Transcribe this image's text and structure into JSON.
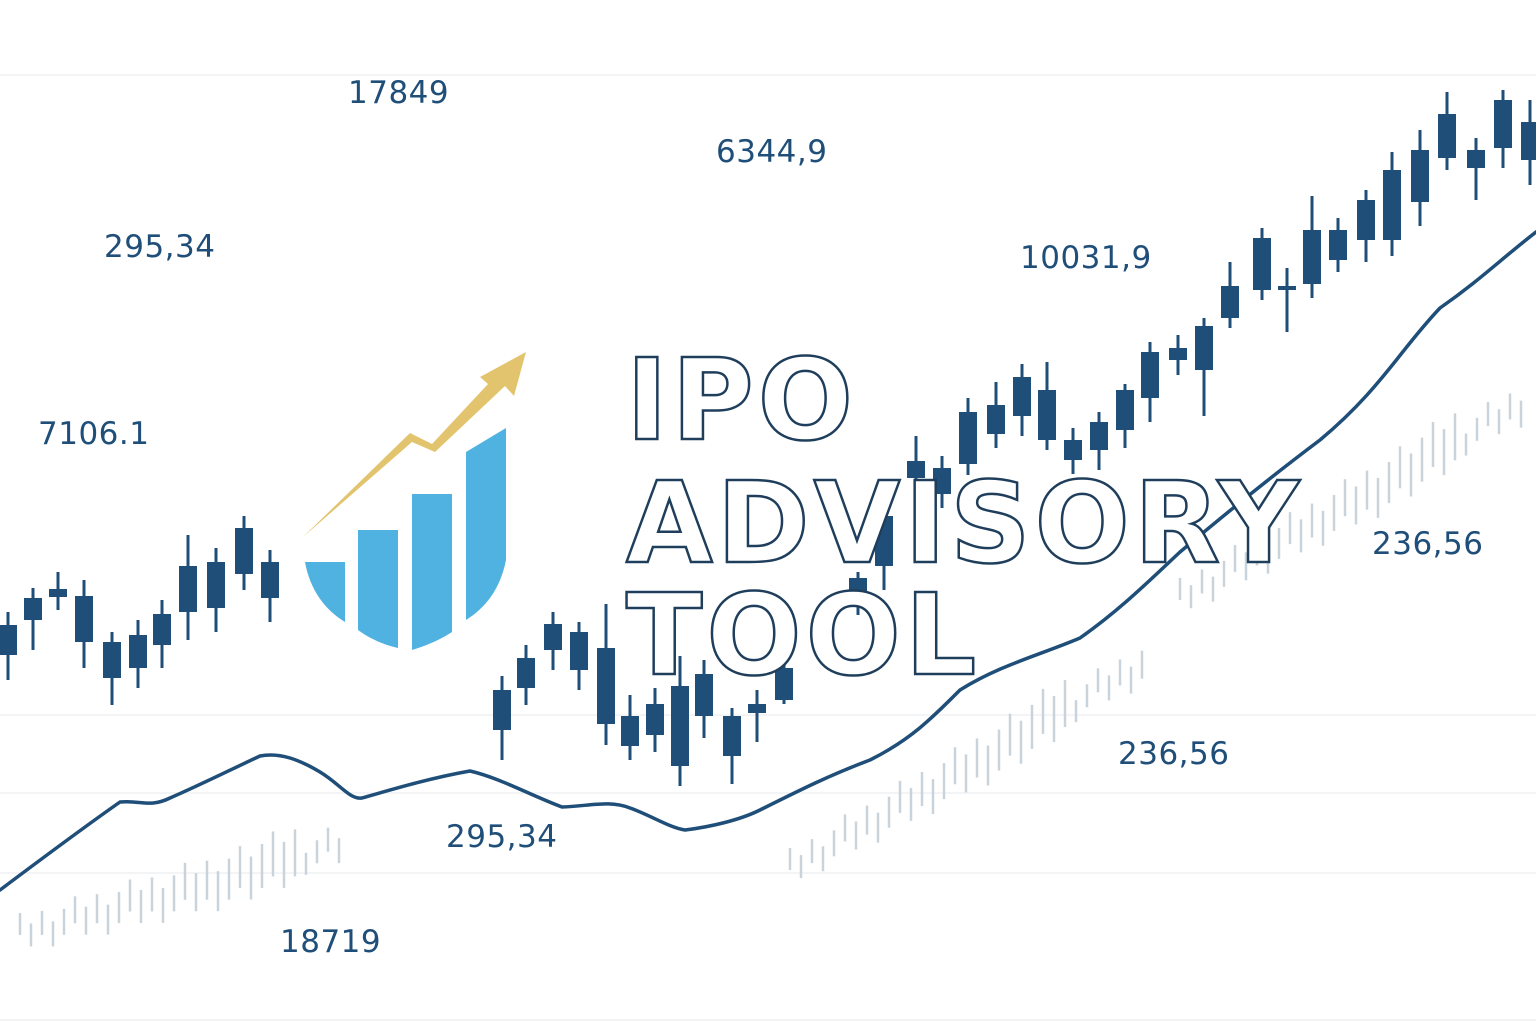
{
  "title": {
    "line1": "IPO",
    "line2": "ADVISORY",
    "line3": "TOOL"
  },
  "labels": [
    {
      "id": "label-1",
      "text": "17849"
    },
    {
      "id": "label-2",
      "text": "6344,9"
    },
    {
      "id": "label-3",
      "text": "295,34"
    },
    {
      "id": "label-4",
      "text": "10031,9"
    },
    {
      "id": "label-5",
      "text": "7106.1"
    },
    {
      "id": "label-6",
      "text": "236,56"
    },
    {
      "id": "label-7",
      "text": "236,56"
    },
    {
      "id": "label-8",
      "text": "295,34"
    },
    {
      "id": "label-9",
      "text": "18719"
    }
  ],
  "logo": {
    "icon": "growth-chart-logo-icon",
    "bar_color": "#4fb2e0",
    "arrow_color": "#e3c46e",
    "bar_levels": [
      0.35,
      0.5,
      0.7,
      1.0
    ]
  },
  "colors": {
    "candle": "#1f4e79",
    "trend_line": "#1f4e79",
    "faint_candle": "#c9d3dc",
    "background": "#ffffff",
    "gridline": "#e4e8ec"
  }
}
